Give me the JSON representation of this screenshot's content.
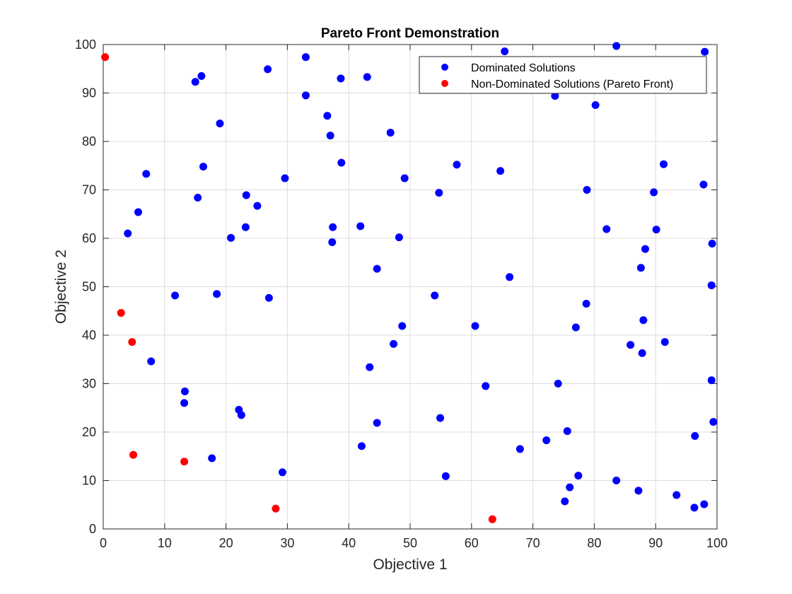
{
  "chart_data": {
    "type": "scatter",
    "title": "Pareto Front Demonstration",
    "xlabel": "Objective 1",
    "ylabel": "Objective 2",
    "xlim": [
      0,
      100
    ],
    "ylim": [
      0,
      100
    ],
    "xticks": [
      0,
      10,
      20,
      30,
      40,
      50,
      60,
      70,
      80,
      90,
      100
    ],
    "yticks": [
      0,
      10,
      20,
      30,
      40,
      50,
      60,
      70,
      80,
      90,
      100
    ],
    "grid": true,
    "legend_position": "top-right",
    "series": [
      {
        "name": "Dominated Solutions",
        "color": "#0000ff",
        "points": [
          [
            15.0,
            92.3
          ],
          [
            16.0,
            93.5
          ],
          [
            19.0,
            83.7
          ],
          [
            16.3,
            74.8
          ],
          [
            7.0,
            73.3
          ],
          [
            5.7,
            65.4
          ],
          [
            4.0,
            61.0
          ],
          [
            15.4,
            68.4
          ],
          [
            11.7,
            48.2
          ],
          [
            18.5,
            48.5
          ],
          [
            7.8,
            34.6
          ],
          [
            13.3,
            28.4
          ],
          [
            13.2,
            26.0
          ],
          [
            17.7,
            14.6
          ],
          [
            26.8,
            94.9
          ],
          [
            33.0,
            97.4
          ],
          [
            33.0,
            89.5
          ],
          [
            23.3,
            68.9
          ],
          [
            25.1,
            66.7
          ],
          [
            23.2,
            62.3
          ],
          [
            20.8,
            60.1
          ],
          [
            29.6,
            72.4
          ],
          [
            27.0,
            47.7
          ],
          [
            22.1,
            24.6
          ],
          [
            22.5,
            23.5
          ],
          [
            29.2,
            11.7
          ],
          [
            36.5,
            85.3
          ],
          [
            37.0,
            81.2
          ],
          [
            38.7,
            93.0
          ],
          [
            43.0,
            93.3
          ],
          [
            38.8,
            75.6
          ],
          [
            37.4,
            62.3
          ],
          [
            37.3,
            59.2
          ],
          [
            41.9,
            62.5
          ],
          [
            46.8,
            81.8
          ],
          [
            49.1,
            72.4
          ],
          [
            48.2,
            60.2
          ],
          [
            44.6,
            53.7
          ],
          [
            48.7,
            41.9
          ],
          [
            47.3,
            38.2
          ],
          [
            43.4,
            33.4
          ],
          [
            44.6,
            21.9
          ],
          [
            42.1,
            17.1
          ],
          [
            65.4,
            98.6
          ],
          [
            57.6,
            75.2
          ],
          [
            64.7,
            73.9
          ],
          [
            54.7,
            69.4
          ],
          [
            54.0,
            48.2
          ],
          [
            60.6,
            41.9
          ],
          [
            66.2,
            52.0
          ],
          [
            62.3,
            29.5
          ],
          [
            54.9,
            22.9
          ],
          [
            55.8,
            10.9
          ],
          [
            67.9,
            16.5
          ],
          [
            83.6,
            99.7
          ],
          [
            98.0,
            98.5
          ],
          [
            73.6,
            89.4
          ],
          [
            80.2,
            87.5
          ],
          [
            91.3,
            75.3
          ],
          [
            97.8,
            71.1
          ],
          [
            78.8,
            70.0
          ],
          [
            89.7,
            69.5
          ],
          [
            82.0,
            61.9
          ],
          [
            90.1,
            61.8
          ],
          [
            88.3,
            57.8
          ],
          [
            99.2,
            58.9
          ],
          [
            87.6,
            53.9
          ],
          [
            99.1,
            50.3
          ],
          [
            78.7,
            46.5
          ],
          [
            88.0,
            43.1
          ],
          [
            77.0,
            41.6
          ],
          [
            85.9,
            38.0
          ],
          [
            91.5,
            38.6
          ],
          [
            87.8,
            36.3
          ],
          [
            74.1,
            30.0
          ],
          [
            99.1,
            30.7
          ],
          [
            72.2,
            18.3
          ],
          [
            75.6,
            20.2
          ],
          [
            96.4,
            19.2
          ],
          [
            99.4,
            22.1
          ],
          [
            77.4,
            11.0
          ],
          [
            76.0,
            8.6
          ],
          [
            83.6,
            10.0
          ],
          [
            87.2,
            7.9
          ],
          [
            75.2,
            5.7
          ],
          [
            93.4,
            7.0
          ],
          [
            96.3,
            4.4
          ],
          [
            97.9,
            5.1
          ]
        ]
      },
      {
        "name": "Non-Dominated Solutions (Pareto Front)",
        "color": "#ff0000",
        "points": [
          [
            0.3,
            97.4
          ],
          [
            2.9,
            44.6
          ],
          [
            4.7,
            38.6
          ],
          [
            4.9,
            15.3
          ],
          [
            13.2,
            13.9
          ],
          [
            28.1,
            4.2
          ],
          [
            63.4,
            2.0
          ]
        ]
      }
    ]
  }
}
